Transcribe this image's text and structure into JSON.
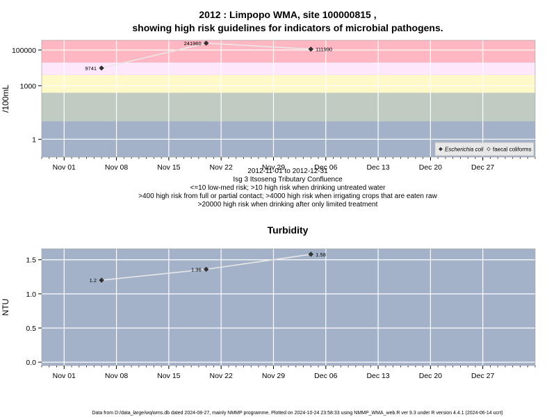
{
  "title_line1": "2012 : Limpopo WMA, site 100000815 ,",
  "title_line2": "showing high risk guidelines for indicators of microbial pathogens.",
  "turbidity_title": "Turbidity",
  "caption_lines": [
    "2012-11-01 to 2012-12-31",
    "Isg 3 Itsoseng Tributary Confluence",
    "<=10 low-med risk; >10 high risk when drinking untreated water",
    ">400 high risk from full or partial contact; >4000 high risk when irrigating crops that are eaten raw",
    ">20000 high risk when drinking after only limited treatment"
  ],
  "footer": "Data from D:/data_large/wq/wms.db dated 2024-08-27, mainly NMMP programme. Plotted on 2024-10-24 23:58:33 using NMMP_WMA_web.R ver 9.3 under R version 4.4.1 (2024-06-14 ucrt)",
  "colors": {
    "panel_bg": "#a3b2c9",
    "band_green": "#c0cbc2",
    "band_yellow": "#fff9c9",
    "band_pink_light": "#ffe7fb",
    "band_red": "#ffb7c3",
    "line": "#e8e8e8",
    "marker": "#333333"
  },
  "chart_data": [
    {
      "type": "line",
      "title": "",
      "xlabel": "",
      "ylabel": "/100mL",
      "y_scale": "log",
      "xlim": [
        "2012-10-29",
        "2013-01-03"
      ],
      "ylim": [
        0.1,
        350000
      ],
      "x_ticks": [
        "Nov 01",
        "Nov 08",
        "Nov 15",
        "Nov 22",
        "Nov 29",
        "Dec 06",
        "Dec 13",
        "Dec 20",
        "Dec 27"
      ],
      "y_ticks": [
        "1",
        "1000",
        "100000"
      ],
      "grid": true,
      "legend_position": "bottom-right",
      "risk_bands": [
        {
          "from": 10,
          "to": 400,
          "label": ">10"
        },
        {
          "from": 400,
          "to": 4000,
          "label": ">400"
        },
        {
          "from": 4000,
          "to": 20000,
          "label": ">4000"
        },
        {
          "from": 20000,
          "to": 350000,
          "label": ">20000"
        }
      ],
      "series": [
        {
          "name": "Escherichia coli",
          "marker": "filled-diamond",
          "points": [
            {
              "x": "2012-11-06",
              "y": 9741,
              "label": "9741"
            },
            {
              "x": "2012-11-20",
              "y": 241960,
              "label": "241960"
            },
            {
              "x": "2012-12-04",
              "y": 111990,
              "label": "111990"
            }
          ]
        },
        {
          "name": "faecal coliforms",
          "marker": "open-diamond",
          "points": []
        }
      ]
    },
    {
      "type": "line",
      "title": "Turbidity",
      "xlabel": "",
      "ylabel": "NTU",
      "xlim": [
        "2012-10-29",
        "2013-01-03"
      ],
      "ylim": [
        -0.05,
        1.66
      ],
      "x_ticks": [
        "Nov 01",
        "Nov 08",
        "Nov 15",
        "Nov 22",
        "Nov 29",
        "Dec 06",
        "Dec 13",
        "Dec 20",
        "Dec 27"
      ],
      "y_ticks": [
        "0.0",
        "0.5",
        "1.0",
        "1.5"
      ],
      "grid": true,
      "series": [
        {
          "name": "",
          "marker": "filled-diamond",
          "points": [
            {
              "x": "2012-11-06",
              "y": 1.2,
              "label": "1.2"
            },
            {
              "x": "2012-11-20",
              "y": 1.36,
              "label": "1.36"
            },
            {
              "x": "2012-12-04",
              "y": 1.58,
              "label": "1.58"
            }
          ]
        }
      ]
    }
  ]
}
